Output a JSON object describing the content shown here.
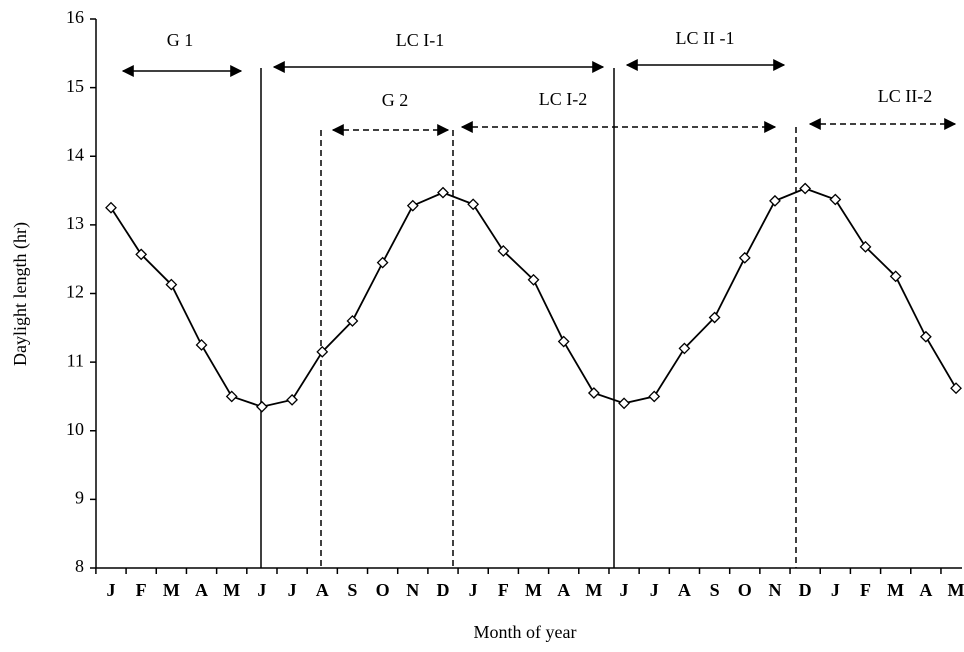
{
  "chart_data": {
    "type": "line",
    "x_label": "Month of year",
    "y_label": "Daylight length (hr)",
    "categories": [
      "J",
      "F",
      "M",
      "A",
      "M",
      "J",
      "J",
      "A",
      "S",
      "O",
      "N",
      "D",
      "J",
      "F",
      "M",
      "A",
      "M",
      "J",
      "J",
      "A",
      "S",
      "O",
      "N",
      "D",
      "J",
      "F",
      "M",
      "A",
      "M"
    ],
    "series": [
      {
        "name": "Daylight length",
        "color": "#000000",
        "values": [
          13.25,
          12.57,
          12.13,
          11.25,
          10.5,
          10.35,
          10.45,
          11.15,
          11.6,
          12.45,
          13.28,
          13.47,
          13.3,
          12.62,
          12.2,
          11.3,
          10.55,
          10.4,
          10.5,
          11.2,
          11.65,
          12.52,
          13.35,
          13.53,
          13.37,
          12.68,
          12.25,
          11.37,
          10.62
        ]
      }
    ],
    "ylim": [
      8,
      16
    ],
    "yticks": [
      8,
      9,
      10,
      11,
      12,
      13,
      14,
      15,
      16
    ],
    "annotations": [
      "G 1",
      "LC I-1",
      "LC II -1",
      "G 2",
      "LC I-2",
      "LC II-2"
    ]
  }
}
